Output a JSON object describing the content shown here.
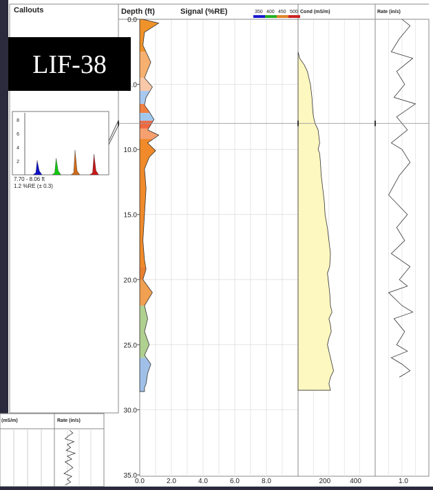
{
  "badge": {
    "text": "LIF-38"
  },
  "callouts_panel": {
    "title": "Callouts"
  },
  "callout": {
    "y_ticks": [
      "8",
      "6",
      "4",
      "2"
    ],
    "depth_text": "7.70 - 8.06 ft",
    "signal_text": "1.2 %RE (± 0.3)",
    "peaks": [
      {
        "name": "350",
        "color": "#1010c8",
        "value": 2.1
      },
      {
        "name": "400",
        "color": "#10c810",
        "value": 2.4
      },
      {
        "name": "450",
        "color": "#d06a18",
        "value": 3.6
      },
      {
        "name": "500",
        "color": "#c81818",
        "value": 3.0
      }
    ],
    "ylim": [
      0,
      9
    ]
  },
  "depth_track": {
    "title": "Depth (ft)",
    "ticks": [
      "0.0",
      "5.0",
      "10.0",
      "15.0",
      "20.0",
      "25.0",
      "30.0",
      "35.0"
    ]
  },
  "signal_track": {
    "title": "Signal (%RE)",
    "legend": [
      "350",
      "400",
      "450",
      "500"
    ],
    "legend_colors": [
      "#1a1acd",
      "#22b022",
      "#e0842a",
      "#cc2222"
    ],
    "x_ticks": [
      "0.0",
      "2.0",
      "4.0",
      "6.0",
      "8.0"
    ]
  },
  "cond_track": {
    "title": "Cond (mS/m)",
    "x_ticks": [
      "200",
      "400"
    ]
  },
  "rate_track": {
    "title": "Rate (in/s)",
    "x_ticks": [
      "1.0"
    ]
  },
  "inset": {
    "cond_title": "(mS/m)",
    "rate_title": "Rate (in/s)"
  },
  "chart_data": [
    {
      "type": "area",
      "title": "Signal (%RE)",
      "ylabel": "Depth (ft)",
      "ylim": [
        0,
        35
      ],
      "xlim": [
        0,
        10
      ],
      "series": [
        {
          "name": "Signal (%RE)",
          "x": [
            0.2,
            1.2,
            0.3,
            0.2,
            0.7,
            0.3,
            0.8,
            0.4,
            0.3,
            0.6,
            0.9,
            0.7,
            0.5,
            1.2,
            0.5,
            1.0,
            0.6,
            0.3,
            0.4,
            0.3,
            0.2,
            0.3,
            0.4,
            0.2,
            0.8,
            0.3,
            0.5,
            0.3,
            0.6,
            0.3,
            0.7,
            0.5,
            0.4,
            0.3,
            0.3
          ],
          "y": [
            0.0,
            0.3,
            1.0,
            2.0,
            3.3,
            4.5,
            5.2,
            6.0,
            6.6,
            7.1,
            7.7,
            8.1,
            8.5,
            8.9,
            9.5,
            10.1,
            10.6,
            11.5,
            13.0,
            15.0,
            17.0,
            18.5,
            19.2,
            20.0,
            21.0,
            22.0,
            23.0,
            24.0,
            25.0,
            25.8,
            26.5,
            27.2,
            28.0,
            28.3,
            28.6
          ]
        }
      ],
      "grid": true
    },
    {
      "type": "line",
      "title": "Cond (mS/m)",
      "ylabel": "Depth (ft)",
      "ylim": [
        0,
        35
      ],
      "xlim": [
        0,
        500
      ],
      "series": [
        {
          "name": "Cond (mS/m)",
          "x": [
            0,
            10,
            40,
            60,
            80,
            90,
            95,
            100,
            110,
            130,
            140,
            130,
            140,
            145,
            150,
            160,
            170,
            175,
            190,
            200,
            210,
            205,
            190,
            195,
            200,
            205,
            210,
            220,
            200,
            210,
            215,
            200,
            190,
            200,
            210,
            220,
            230,
            210,
            200,
            210
          ],
          "y": [
            2.5,
            3.0,
            3.5,
            4.0,
            5.0,
            6.0,
            7.0,
            7.5,
            8.0,
            8.5,
            9.5,
            10.0,
            10.3,
            11.0,
            12.0,
            13.0,
            14.0,
            15.0,
            16.0,
            17.0,
            18.0,
            19.0,
            19.5,
            20.0,
            20.5,
            21.0,
            22.0,
            22.5,
            23.0,
            23.5,
            24.0,
            24.5,
            25.0,
            25.5,
            26.0,
            26.5,
            27.0,
            27.5,
            28.0,
            28.5
          ]
        }
      ],
      "grid": true
    },
    {
      "type": "line",
      "title": "Rate (in/s)",
      "ylabel": "Depth (ft)",
      "ylim": [
        0,
        35
      ],
      "xlim": [
        0,
        2
      ],
      "series": [
        {
          "name": "Rate (in/s)",
          "x": [
            1.0,
            1.3,
            0.9,
            0.6,
            1.4,
            0.8,
            1.1,
            0.7,
            1.5,
            0.8,
            1.2,
            0.6,
            1.0,
            1.3,
            0.9,
            0.5,
            1.2,
            0.8,
            1.1,
            0.6,
            1.3,
            0.9,
            1.2,
            0.5,
            1.0,
            1.4,
            0.7,
            1.1,
            0.8,
            1.2,
            0.6,
            1.0,
            1.3,
            0.9
          ],
          "y": [
            0.0,
            0.5,
            1.5,
            2.5,
            3.0,
            4.0,
            5.0,
            6.0,
            6.5,
            7.5,
            8.5,
            9.5,
            10.0,
            11.0,
            12.0,
            13.5,
            15.0,
            16.0,
            17.0,
            18.0,
            19.0,
            20.0,
            20.5,
            21.0,
            22.0,
            22.5,
            23.0,
            24.0,
            25.0,
            25.5,
            26.0,
            26.5,
            27.0,
            27.5
          ]
        }
      ],
      "grid": true
    }
  ]
}
